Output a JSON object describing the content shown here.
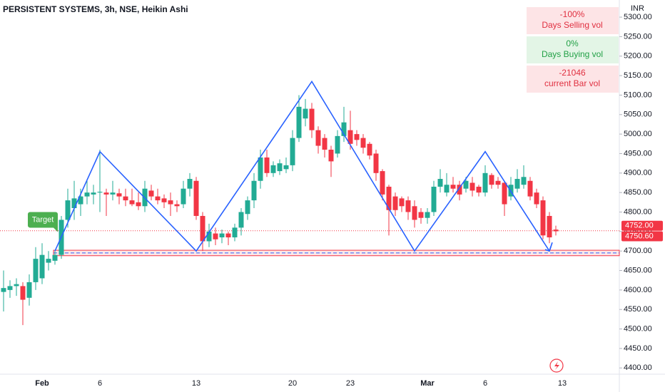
{
  "chart_data": {
    "type": "candlestick",
    "title": "PERSISTENT SYSTEMS, 3h, NSE, Heikin Ashi",
    "currency": "INR",
    "up_color": "#22ab94",
    "down_color": "#f23645",
    "categories": [
      null,
      null,
      null,
      null,
      null,
      null,
      "Feb",
      null,
      null,
      null,
      null,
      null,
      null,
      null,
      null,
      "6",
      null,
      null,
      null,
      null,
      null,
      null,
      null,
      null,
      null,
      null,
      null,
      null,
      null,
      null,
      "13",
      null,
      null,
      null,
      null,
      null,
      null,
      null,
      null,
      null,
      null,
      null,
      null,
      null,
      null,
      "20",
      null,
      null,
      null,
      null,
      null,
      null,
      null,
      null,
      "23",
      null,
      null,
      null,
      null,
      null,
      null,
      null,
      null,
      null,
      null,
      null,
      "Mar",
      null,
      null,
      null,
      null,
      null,
      null,
      null,
      null,
      "6",
      null,
      null,
      null,
      null,
      null,
      null,
      null,
      null,
      null,
      null,
      null,
      "13"
    ],
    "open": [
      4595,
      4600,
      4610,
      4610,
      4580,
      4620,
      4630,
      4670,
      4675,
      4690,
      4780,
      4810,
      4820,
      4840,
      4845,
      4850,
      4850,
      4845,
      4848,
      4840,
      4830,
      4825,
      4815,
      4855,
      4840,
      4835,
      4830,
      4820,
      4820,
      4860,
      4880,
      4790,
      4725,
      4745,
      4735,
      4745,
      4735,
      4760,
      4795,
      4830,
      4880,
      4940,
      4900,
      4905,
      4910,
      4920,
      4990,
      5040,
      5065,
      5010,
      4990,
      4960,
      4950,
      4995,
      5010,
      5000,
      4990,
      4975,
      4950,
      4905,
      4865,
      4840,
      4835,
      4830,
      4815,
      4800,
      4785,
      4800,
      4865,
      4850,
      4870,
      4870,
      4860,
      4875,
      4865,
      4850,
      4895,
      4880,
      4875,
      4840,
      4860,
      4870,
      4880,
      4850,
      4830,
      4790,
      4755,
      null
    ],
    "high": [
      4650,
      4625,
      4630,
      4620,
      4640,
      4710,
      4720,
      4700,
      4700,
      4790,
      4860,
      4880,
      4860,
      4880,
      4870,
      4960,
      4860,
      4880,
      4860,
      4860,
      4860,
      4850,
      4880,
      4870,
      4860,
      4845,
      4850,
      4830,
      4880,
      4900,
      4890,
      4800,
      4770,
      4760,
      4755,
      4750,
      4770,
      4810,
      4840,
      4900,
      4960,
      4960,
      4930,
      4935,
      4940,
      5010,
      5100,
      5090,
      5080,
      5020,
      5000,
      4970,
      5010,
      5070,
      5060,
      5010,
      5000,
      4980,
      4960,
      4910,
      4870,
      4850,
      4840,
      4840,
      4830,
      4810,
      4810,
      4880,
      4910,
      4900,
      4890,
      4880,
      4890,
      4890,
      4870,
      4920,
      4900,
      4890,
      4880,
      4890,
      4910,
      4920,
      4890,
      4860,
      4840,
      4800,
      4765,
      null
    ],
    "low": [
      4545,
      4580,
      4585,
      4510,
      4560,
      4600,
      4615,
      4650,
      4665,
      4680,
      4760,
      4780,
      4790,
      4820,
      4820,
      4800,
      4790,
      4830,
      4820,
      4815,
      4815,
      4805,
      4800,
      4830,
      4820,
      4810,
      4790,
      4800,
      4810,
      4840,
      4780,
      4700,
      4710,
      4715,
      4720,
      4715,
      4725,
      4740,
      4780,
      4810,
      4860,
      4890,
      4890,
      4895,
      4900,
      4905,
      4980,
      5020,
      4990,
      4950,
      4940,
      4890,
      4940,
      4980,
      4960,
      4970,
      4950,
      4935,
      4880,
      4830,
      4740,
      4790,
      4800,
      4780,
      4760,
      4770,
      4770,
      4790,
      4850,
      4840,
      4850,
      4830,
      4850,
      4840,
      4840,
      4840,
      4860,
      4860,
      4790,
      4830,
      4850,
      4860,
      4830,
      4810,
      4730,
      4720,
      4740,
      null
    ],
    "close": [
      4605,
      4610,
      4615,
      4575,
      4620,
      4680,
      4690,
      4680,
      4690,
      4780,
      4830,
      4835,
      4840,
      4850,
      4850,
      4852,
      4845,
      4850,
      4840,
      4830,
      4820,
      4815,
      4860,
      4840,
      4830,
      4825,
      4820,
      4815,
      4860,
      4885,
      4790,
      4725,
      4750,
      4730,
      4745,
      4735,
      4760,
      4800,
      4830,
      4880,
      4940,
      4900,
      4920,
      4925,
      4920,
      4990,
      5070,
      5065,
      5010,
      4970,
      4960,
      4930,
      4995,
      5030,
      4975,
      4985,
      4965,
      4945,
      4900,
      4845,
      4805,
      4805,
      4815,
      4800,
      4780,
      4785,
      4800,
      4865,
      4885,
      4870,
      4860,
      4845,
      4880,
      4855,
      4850,
      4900,
      4870,
      4870,
      4820,
      4870,
      4885,
      4890,
      4840,
      4820,
      4740,
      4735,
      4750.6,
      null
    ],
    "ylim": [
      4384,
      5344
    ],
    "yticks": [
      {
        "value": 4400,
        "label": "4400.00"
      },
      {
        "value": 4450,
        "label": "4450.00"
      },
      {
        "value": 4500,
        "label": "4500.00"
      },
      {
        "value": 4550,
        "label": "4550.00"
      },
      {
        "value": 4600,
        "label": "4600.00"
      },
      {
        "value": 4650,
        "label": "4650.00"
      },
      {
        "value": 4700,
        "label": "4700.00"
      },
      {
        "value": 4750,
        "label": "4750.00"
      },
      {
        "value": 4800,
        "label": "4800.00"
      },
      {
        "value": 4850,
        "label": "4850.00"
      },
      {
        "value": 4900,
        "label": "4900.00"
      },
      {
        "value": 4950,
        "label": "4950.00"
      },
      {
        "value": 5000,
        "label": "5000.00"
      },
      {
        "value": 5050,
        "label": "5050.00"
      },
      {
        "value": 5100,
        "label": "5100.00"
      },
      {
        "value": 5150,
        "label": "5150.00"
      },
      {
        "value": 5200,
        "label": "5200.00"
      },
      {
        "value": 5250,
        "label": "5250.00"
      },
      {
        "value": 5300,
        "label": "5300.00"
      }
    ],
    "price_labels": [
      {
        "value": 4752,
        "label": "4752.00"
      },
      {
        "value": 4750.6,
        "label": "4750.60"
      }
    ],
    "zigzag": {
      "color": "#2962ff",
      "x": [
        8,
        15,
        30,
        48,
        64,
        75,
        85
      ],
      "values": [
        4700,
        4955,
        4700,
        5135,
        4700,
        4955,
        4700
      ]
    },
    "zone": {
      "top": 4702,
      "bottom": 4688,
      "mid": 4695
    },
    "target": {
      "label": "Target",
      "x": 6,
      "value": 4780
    },
    "info_panels": [
      {
        "value": "-100%",
        "label": "Days Selling vol",
        "tone": "down"
      },
      {
        "value": "0%",
        "label": "Days Buying vol",
        "tone": "up"
      },
      {
        "value": "-21046",
        "label": "current Bar vol",
        "tone": "down"
      }
    ]
  }
}
